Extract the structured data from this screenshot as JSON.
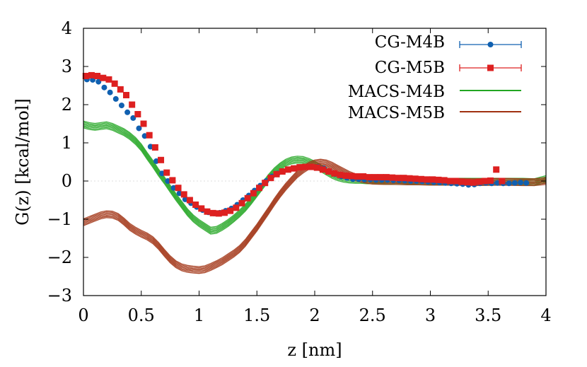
{
  "chart_data": {
    "type": "line",
    "xlabel": "z [nm]",
    "ylabel": "G(z) [kcal/mol]",
    "xlim": [
      0,
      4
    ],
    "ylim": [
      -3,
      4
    ],
    "xticks": [
      0,
      0.5,
      1,
      1.5,
      2,
      2.5,
      3,
      3.5,
      4
    ],
    "xtick_labels": [
      "0",
      "0.5",
      "1",
      "1.5",
      "2",
      "2.5",
      "3",
      "3.5",
      "4"
    ],
    "yticks": [
      -3,
      -2,
      -1,
      0,
      1,
      2,
      3,
      4
    ],
    "ytick_labels": [
      "−3",
      "−2",
      "−1",
      "0",
      "1",
      "2",
      "3",
      "4"
    ],
    "grid": false,
    "legend_position": "top-right",
    "legend": [
      "CG-M4B",
      "CG-M5B",
      "MACS-M4B",
      "MACS-M5B"
    ],
    "series": [
      {
        "name": "CG-M4B",
        "style": "points-errorbars",
        "marker": "circle",
        "color": "#1060b0",
        "x": [
          0.03,
          0.08,
          0.13,
          0.18,
          0.23,
          0.28,
          0.33,
          0.38,
          0.43,
          0.48,
          0.53,
          0.58,
          0.63,
          0.68,
          0.73,
          0.78,
          0.83,
          0.88,
          0.93,
          0.98,
          1.03,
          1.08,
          1.13,
          1.18,
          1.23,
          1.28,
          1.33,
          1.38,
          1.43,
          1.48,
          1.53,
          1.58,
          1.63,
          1.68,
          1.73,
          1.78,
          1.83,
          1.88,
          1.93,
          1.98,
          2.03,
          2.08,
          2.13,
          2.18,
          2.23,
          2.28,
          2.33,
          2.38,
          2.43,
          2.48,
          2.53,
          2.58,
          2.63,
          2.68,
          2.73,
          2.78,
          2.83,
          2.88,
          2.93,
          2.98,
          3.03,
          3.08,
          3.13,
          3.18,
          3.23,
          3.28,
          3.33,
          3.38,
          3.43,
          3.48,
          3.53,
          3.58,
          3.63,
          3.68,
          3.73,
          3.78,
          3.83
        ],
        "y": [
          2.66,
          2.65,
          2.6,
          2.45,
          2.32,
          2.15,
          1.98,
          1.8,
          1.65,
          1.38,
          1.18,
          0.9,
          0.52,
          0.2,
          0.0,
          -0.18,
          -0.32,
          -0.48,
          -0.58,
          -0.68,
          -0.76,
          -0.82,
          -0.85,
          -0.83,
          -0.78,
          -0.72,
          -0.62,
          -0.5,
          -0.38,
          -0.25,
          -0.12,
          0.0,
          0.12,
          0.2,
          0.26,
          0.3,
          0.34,
          0.36,
          0.37,
          0.38,
          0.37,
          0.33,
          0.25,
          0.18,
          0.12,
          0.08,
          0.05,
          0.05,
          0.04,
          0.04,
          0.03,
          0.03,
          0.03,
          0.02,
          0.02,
          0.01,
          0.0,
          0.0,
          -0.01,
          -0.02,
          -0.03,
          -0.04,
          -0.05,
          -0.06,
          -0.07,
          -0.08,
          -0.1,
          -0.09,
          -0.06,
          -0.05,
          -0.06,
          -0.05,
          -0.06,
          -0.06,
          -0.05,
          -0.04,
          -0.05
        ]
      },
      {
        "name": "CG-M5B",
        "style": "points-errorbars",
        "marker": "square",
        "color": "#dd2020",
        "x": [
          0.02,
          0.07,
          0.12,
          0.17,
          0.22,
          0.27,
          0.32,
          0.37,
          0.42,
          0.47,
          0.52,
          0.57,
          0.62,
          0.67,
          0.72,
          0.77,
          0.82,
          0.87,
          0.92,
          0.97,
          1.02,
          1.07,
          1.12,
          1.17,
          1.22,
          1.27,
          1.32,
          1.37,
          1.42,
          1.47,
          1.52,
          1.57,
          1.62,
          1.67,
          1.72,
          1.77,
          1.82,
          1.87,
          1.92,
          1.97,
          2.02,
          2.07,
          2.12,
          2.17,
          2.22,
          2.27,
          2.32,
          2.37,
          2.42,
          2.47,
          2.52,
          2.57,
          2.62,
          2.67,
          2.72,
          2.77,
          2.82,
          2.87,
          2.92,
          2.97,
          3.02,
          3.07,
          3.12,
          3.17,
          3.22,
          3.27,
          3.32,
          3.37,
          3.42,
          3.47,
          3.52,
          3.57,
          3.62
        ],
        "y": [
          2.75,
          2.77,
          2.75,
          2.7,
          2.66,
          2.55,
          2.4,
          2.25,
          2.0,
          1.75,
          1.5,
          1.2,
          0.88,
          0.55,
          0.22,
          0.02,
          -0.18,
          -0.35,
          -0.5,
          -0.62,
          -0.72,
          -0.8,
          -0.84,
          -0.85,
          -0.83,
          -0.78,
          -0.7,
          -0.58,
          -0.45,
          -0.32,
          -0.18,
          -0.05,
          0.08,
          0.18,
          0.25,
          0.3,
          0.33,
          0.36,
          0.37,
          0.37,
          0.35,
          0.3,
          0.25,
          0.2,
          0.16,
          0.14,
          0.13,
          0.12,
          0.12,
          0.1,
          0.1,
          0.1,
          0.1,
          0.09,
          0.08,
          0.08,
          0.07,
          0.06,
          0.05,
          0.04,
          0.04,
          0.03,
          0.02,
          0.0,
          0.0,
          -0.02,
          -0.03,
          -0.04,
          -0.02,
          0.0,
          0.01,
          0.3,
          0.0
        ]
      },
      {
        "name": "MACS-M4B",
        "style": "line-bundle",
        "color": "#22a622",
        "x": [
          0,
          0.05,
          0.1,
          0.15,
          0.2,
          0.25,
          0.3,
          0.35,
          0.4,
          0.45,
          0.5,
          0.55,
          0.6,
          0.65,
          0.7,
          0.75,
          0.8,
          0.85,
          0.9,
          0.95,
          1.0,
          1.05,
          1.1,
          1.15,
          1.2,
          1.25,
          1.3,
          1.35,
          1.4,
          1.45,
          1.5,
          1.55,
          1.6,
          1.65,
          1.7,
          1.75,
          1.8,
          1.85,
          1.9,
          1.95,
          2.0,
          2.05,
          2.1,
          2.15,
          2.2,
          2.25,
          2.3,
          2.35,
          2.4,
          2.45,
          2.5,
          2.6,
          2.7,
          2.8,
          2.9,
          3.0,
          3.2,
          3.4,
          3.6,
          3.8,
          3.9,
          4.0
        ],
        "y": [
          1.48,
          1.44,
          1.42,
          1.44,
          1.46,
          1.42,
          1.35,
          1.28,
          1.18,
          1.05,
          0.88,
          0.66,
          0.45,
          0.22,
          0.02,
          -0.2,
          -0.42,
          -0.62,
          -0.82,
          -0.98,
          -1.1,
          -1.2,
          -1.3,
          -1.28,
          -1.2,
          -1.1,
          -0.98,
          -0.85,
          -0.7,
          -0.52,
          -0.32,
          -0.12,
          0.08,
          0.25,
          0.38,
          0.48,
          0.54,
          0.56,
          0.55,
          0.5,
          0.43,
          0.34,
          0.25,
          0.16,
          0.1,
          0.06,
          0.04,
          0.03,
          0.03,
          0.02,
          0.02,
          0.01,
          0.0,
          0.0,
          -0.01,
          -0.01,
          -0.02,
          -0.02,
          -0.02,
          -0.02,
          -0.03,
          0.05
        ]
      },
      {
        "name": "MACS-M5B",
        "style": "line-bundle",
        "color": "#a03010",
        "x": [
          0,
          0.05,
          0.1,
          0.15,
          0.2,
          0.25,
          0.3,
          0.35,
          0.4,
          0.45,
          0.5,
          0.55,
          0.6,
          0.65,
          0.7,
          0.75,
          0.8,
          0.85,
          0.9,
          0.95,
          1.0,
          1.05,
          1.1,
          1.15,
          1.2,
          1.25,
          1.3,
          1.35,
          1.4,
          1.45,
          1.5,
          1.55,
          1.6,
          1.65,
          1.7,
          1.75,
          1.8,
          1.85,
          1.9,
          1.95,
          2.0,
          2.05,
          2.1,
          2.15,
          2.2,
          2.25,
          2.3,
          2.35,
          2.4,
          2.45,
          2.5,
          2.6,
          2.7,
          2.8,
          2.9,
          3.0,
          3.2,
          3.4,
          3.6,
          3.8,
          3.9,
          4.0
        ],
        "y": [
          -1.08,
          -1.02,
          -0.96,
          -0.9,
          -0.87,
          -0.88,
          -0.94,
          -1.06,
          -1.2,
          -1.3,
          -1.38,
          -1.45,
          -1.55,
          -1.7,
          -1.88,
          -2.05,
          -2.18,
          -2.26,
          -2.3,
          -2.32,
          -2.33,
          -2.31,
          -2.25,
          -2.18,
          -2.1,
          -2.0,
          -1.9,
          -1.78,
          -1.62,
          -1.42,
          -1.22,
          -1.0,
          -0.78,
          -0.55,
          -0.34,
          -0.15,
          0.02,
          0.18,
          0.3,
          0.4,
          0.46,
          0.48,
          0.46,
          0.4,
          0.32,
          0.24,
          0.16,
          0.1,
          0.06,
          0.03,
          0.01,
          0.0,
          0.0,
          -0.01,
          -0.01,
          -0.02,
          -0.02,
          -0.03,
          -0.02,
          -0.03,
          -0.03,
          0.0
        ]
      }
    ]
  }
}
